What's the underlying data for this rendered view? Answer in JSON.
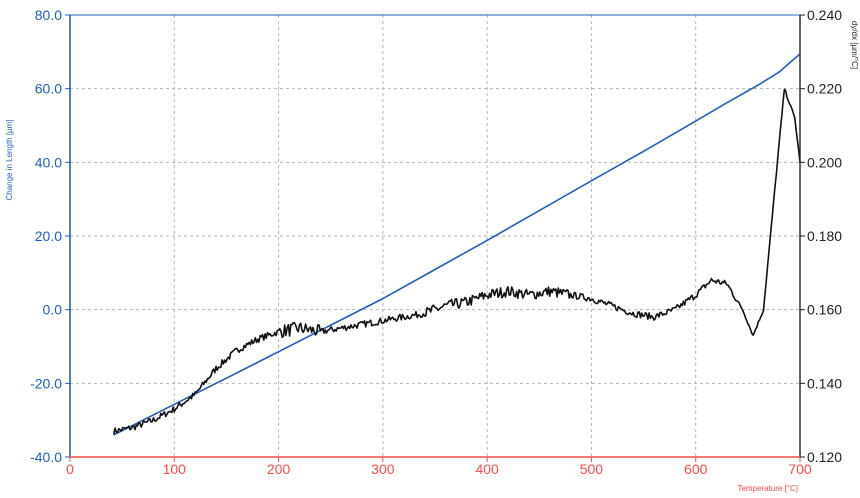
{
  "chart_data": {
    "type": "line",
    "x_axis": {
      "label": "Temperature  [°C]",
      "range": [
        0,
        700
      ],
      "ticks": [
        "0",
        "100",
        "200",
        "300",
        "400",
        "500",
        "600",
        "700"
      ],
      "color": "#ff4a4a"
    },
    "y_axis_left": {
      "label": "Change in Length  [µm]",
      "range": [
        -40,
        80
      ],
      "ticks": [
        "-40.0",
        "-20.0",
        "0.0",
        "20.0",
        "40.0",
        "60.0",
        "80.0"
      ],
      "color": "#1f5fbf"
    },
    "y_axis_right": {
      "label": "dy/dx  [µm/°C]",
      "range": [
        0.12,
        0.24
      ],
      "ticks": [
        "0.120",
        "0.140",
        "0.160",
        "0.180",
        "0.200",
        "0.220",
        "0.240"
      ],
      "color": "#222222"
    },
    "grid": true,
    "series": [
      {
        "axis": "left",
        "color": "#1f5fbf",
        "x": [
          42,
          100,
          150,
          200,
          250,
          300,
          350,
          400,
          450,
          500,
          550,
          600,
          630,
          660,
          680,
          690,
          700
        ],
        "y": [
          -34,
          -25.7,
          -18.6,
          -11.4,
          -4.2,
          3.0,
          10.9,
          18.8,
          26.9,
          35.0,
          43.0,
          51.2,
          56.2,
          61.0,
          64.5,
          67.0,
          69.4
        ]
      },
      {
        "axis": "right",
        "color": "#111111",
        "noisy": true,
        "x": [
          42,
          60,
          80,
          100,
          120,
          140,
          160,
          180,
          200,
          220,
          240,
          260,
          280,
          300,
          320,
          340,
          360,
          380,
          400,
          420,
          440,
          460,
          480,
          500,
          520,
          540,
          560,
          580,
          600,
          615,
          630,
          645,
          655,
          665,
          675,
          685,
          695,
          700
        ],
        "y": [
          0.127,
          0.128,
          0.13,
          0.133,
          0.137,
          0.144,
          0.149,
          0.152,
          0.154,
          0.155,
          0.154,
          0.155,
          0.156,
          0.157,
          0.158,
          0.159,
          0.161,
          0.162,
          0.164,
          0.165,
          0.164,
          0.165,
          0.164,
          0.163,
          0.161,
          0.159,
          0.158,
          0.16,
          0.164,
          0.168,
          0.167,
          0.16,
          0.153,
          0.16,
          0.19,
          0.22,
          0.212,
          0.2
        ]
      }
    ]
  }
}
